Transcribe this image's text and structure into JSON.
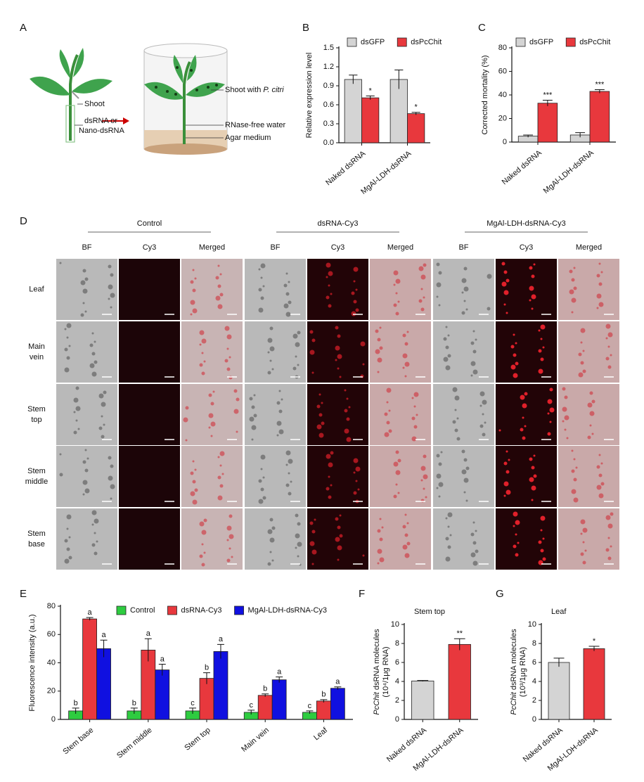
{
  "panel_labels": [
    "A",
    "B",
    "C",
    "D",
    "E",
    "F",
    "G"
  ],
  "diagram": {
    "shoot": "Shoot",
    "dsrna": [
      "dsRNA or",
      "Nano-dsRNA"
    ],
    "shoot_with": "Shoot with ",
    "species": "P. citri",
    "water": "RNase-free water",
    "agar": "Agar medium"
  },
  "microscopy": {
    "groups": [
      "Control",
      "dsRNA-Cy3",
      "MgAl-LDH-dsRNA-Cy3"
    ],
    "columns": [
      "BF",
      "Cy3",
      "Merged",
      "BF",
      "Cy3",
      "Merged",
      "BF",
      "Cy3",
      "Merged"
    ],
    "rows": [
      [
        "Leaf"
      ],
      [
        "Main",
        "vein"
      ],
      [
        "Stem",
        "top"
      ],
      [
        "Stem",
        "middle"
      ],
      [
        "Stem",
        "base"
      ]
    ]
  },
  "chart_data": [
    {
      "type": "bar",
      "ylabel": "Relative expression level",
      "categories": [
        "Naked dsRNA",
        "MgAl-LDH-dsRNA"
      ],
      "series": [
        {
          "name": "dsGFP",
          "color": "#d4d4d4",
          "values": [
            1.0,
            1.0
          ],
          "errors": [
            0.07,
            0.15
          ]
        },
        {
          "name": "dsPcChit",
          "color": "#e8383d",
          "values": [
            0.71,
            0.46
          ],
          "errors": [
            0.03,
            0.02
          ],
          "annotations": [
            "*",
            "*"
          ]
        }
      ],
      "ylim": [
        0,
        1.5
      ],
      "yticks": [
        {
          "value": 0,
          "label": "0.0"
        },
        0.3,
        0.6,
        0.9,
        1.2,
        1.5
      ],
      "legend": "top",
      "grid": false
    },
    {
      "type": "bar",
      "ylabel": "Corrected mortality (%)",
      "categories": [
        "Naked dsRNA",
        "MgAl-LDH-dsRNA"
      ],
      "series": [
        {
          "name": "dsGFP",
          "color": "#d4d4d4",
          "values": [
            5,
            6
          ],
          "errors": [
            1,
            2
          ]
        },
        {
          "name": "dsPcChit",
          "color": "#e8383d",
          "values": [
            33,
            43
          ],
          "errors": [
            2.5,
            1.5
          ],
          "annotations": [
            "***",
            "***"
          ]
        }
      ],
      "ylim": [
        0,
        80
      ],
      "yticks": [
        0,
        20,
        40,
        60,
        80
      ],
      "legend": "top",
      "grid": false
    },
    {
      "type": "bar",
      "ylabel": "Fluorescence intensity (a.u.)",
      "categories": [
        "Stem base",
        "Stem middle",
        "Stem top",
        "Main vein",
        "Leaf"
      ],
      "series": [
        {
          "name": "Control",
          "color": "#2ecc40",
          "values": [
            6,
            6,
            6,
            5,
            5
          ],
          "errors": [
            2,
            2,
            2,
            1.5,
            1
          ],
          "annotations": [
            "b",
            "b",
            "c",
            "c",
            "c"
          ]
        },
        {
          "name": "dsRNA-Cy3",
          "color": "#e8383d",
          "values": [
            71,
            49,
            29,
            17,
            13
          ],
          "errors": [
            1,
            8,
            4,
            1,
            1
          ],
          "annotations": [
            "a",
            "a",
            "b",
            "b",
            "b"
          ]
        },
        {
          "name": "MgAl-LDH-dsRNA-Cy3",
          "color": "#1010e0",
          "values": [
            50,
            35,
            48,
            28,
            22
          ],
          "errors": [
            6,
            4,
            5,
            2,
            1
          ],
          "annotations": [
            "a",
            "a",
            "a",
            "a",
            "a"
          ]
        }
      ],
      "ylim": [
        0,
        80
      ],
      "yticks": [
        0,
        20,
        40,
        60,
        80
      ],
      "legend": "top",
      "grid": false
    },
    {
      "type": "bar",
      "title": "Stem top",
      "ylabel_italic": "PcChit",
      "ylabel": " dsRNA molecules",
      "ylabel_unit": "(10⁴/1μg RNA)",
      "categories": [
        "Naked dsRNA",
        "MgAl-LDH-dsRNA"
      ],
      "values": [
        4.05,
        7.9
      ],
      "errors": [
        0.05,
        0.6
      ],
      "colors": [
        "#d4d4d4",
        "#e8383d"
      ],
      "annotations": [
        null,
        "**"
      ],
      "ylim": [
        0,
        10
      ],
      "yticks": [
        0,
        2,
        4,
        6,
        8,
        10
      ],
      "grid": false
    },
    {
      "type": "bar",
      "title": "Leaf",
      "ylabel_italic": "PcChit",
      "ylabel": " dsRNA molecules",
      "ylabel_unit": "(10³/1μg RNA)",
      "categories": [
        "Naked dsRNA",
        "MgAl-LDH-dsRNA"
      ],
      "values": [
        6.0,
        7.45
      ],
      "errors": [
        0.45,
        0.25
      ],
      "colors": [
        "#d4d4d4",
        "#e8383d"
      ],
      "annotations": [
        null,
        "*"
      ],
      "ylim": [
        0,
        10
      ],
      "yticks": [
        0,
        2,
        4,
        6,
        8,
        10
      ],
      "grid": false
    }
  ]
}
